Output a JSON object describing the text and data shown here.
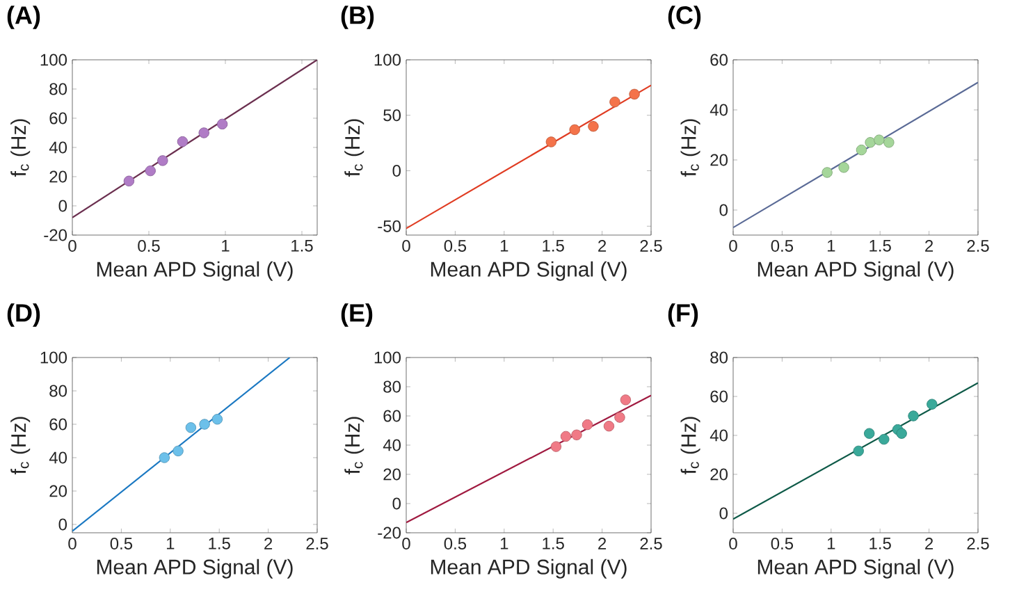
{
  "chart_data": [
    {
      "type": "scatter",
      "title": "(A)",
      "xlabel": "Mean APD Signal (V)",
      "ylabel": "f$_{c}$  (Hz)",
      "xlim": [
        0,
        1.6
      ],
      "xticks": [
        0,
        0.5,
        1,
        1.5
      ],
      "ylim": [
        -20,
        100
      ],
      "yticks": [
        -20,
        0,
        20,
        40,
        60,
        80,
        100
      ],
      "series": [
        {
          "marker": "circle",
          "color": "#b07cc6",
          "x": [
            0.37,
            0.51,
            0.59,
            0.72,
            0.86,
            0.98
          ],
          "values": [
            17,
            24,
            31,
            44,
            50,
            56
          ]
        },
        {
          "type": "line",
          "color": "#6b2f4f",
          "x": [
            0,
            1.6
          ],
          "values": [
            -8,
            100
          ]
        }
      ]
    },
    {
      "type": "scatter",
      "title": "(B)",
      "xlabel": "Mean APD Signal (V)",
      "ylabel": "f$_{c}$  (Hz)",
      "xlim": [
        0,
        2.5
      ],
      "xticks": [
        0,
        0.5,
        1,
        1.5,
        2,
        2.5
      ],
      "ylim": [
        -58,
        100
      ],
      "yticks": [
        -50,
        0,
        50,
        100
      ],
      "series": [
        {
          "marker": "circle",
          "color": "#f4734a",
          "x": [
            1.48,
            1.72,
            1.91,
            2.13,
            2.33
          ],
          "values": [
            26,
            37,
            40,
            62,
            69
          ]
        },
        {
          "type": "line",
          "color": "#e03c22",
          "x": [
            0,
            2.5
          ],
          "values": [
            -52,
            77
          ]
        }
      ]
    },
    {
      "type": "scatter",
      "title": "(C)",
      "xlabel": "Mean APD Signal (V)",
      "ylabel": "f$_{c}$  (Hz)",
      "xlim": [
        0,
        2.5
      ],
      "xticks": [
        0,
        0.5,
        1,
        1.5,
        2,
        2.5
      ],
      "ylim": [
        -10,
        60
      ],
      "yticks": [
        0,
        20,
        40,
        60
      ],
      "series": [
        {
          "marker": "circle",
          "color": "#a5d69a",
          "x": [
            0.96,
            1.13,
            1.31,
            1.4,
            1.49,
            1.59
          ],
          "values": [
            15,
            17,
            24,
            27,
            28,
            27
          ]
        },
        {
          "type": "line",
          "color": "#5a6a96",
          "x": [
            0,
            2.5
          ],
          "values": [
            -7,
            51
          ]
        }
      ]
    },
    {
      "type": "scatter",
      "title": "(D)",
      "xlabel": "Mean APD Signal (V)",
      "ylabel": "f$_{c}$  (Hz)",
      "xlim": [
        0,
        2.5
      ],
      "xticks": [
        0,
        0.5,
        1,
        1.5,
        2,
        2.5
      ],
      "ylim": [
        -5,
        100
      ],
      "yticks": [
        0,
        20,
        40,
        60,
        80,
        100
      ],
      "series": [
        {
          "marker": "circle",
          "color": "#6cc0ea",
          "x": [
            0.94,
            1.08,
            1.21,
            1.35,
            1.48
          ],
          "values": [
            40,
            44,
            58,
            60,
            63
          ]
        },
        {
          "type": "line",
          "color": "#1a78c2",
          "x": [
            0,
            2.22
          ],
          "values": [
            -4,
            100
          ]
        }
      ]
    },
    {
      "type": "scatter",
      "title": "(E)",
      "xlabel": "Mean APD Signal (V)",
      "ylabel": "f$_{c}$  (Hz)",
      "xlim": [
        0,
        2.5
      ],
      "xticks": [
        0,
        0.5,
        1,
        1.5,
        2,
        2.5
      ],
      "ylim": [
        -20,
        100
      ],
      "yticks": [
        -20,
        0,
        20,
        40,
        60,
        80,
        100
      ],
      "series": [
        {
          "marker": "circle",
          "color": "#f07a86",
          "x": [
            1.53,
            1.63,
            1.74,
            1.85,
            2.07,
            2.18,
            2.24
          ],
          "values": [
            39,
            46,
            47,
            54,
            53,
            59,
            71
          ]
        },
        {
          "type": "line",
          "color": "#a01a40",
          "x": [
            0,
            2.5
          ],
          "values": [
            -13,
            74
          ]
        }
      ]
    },
    {
      "type": "scatter",
      "title": "(F)",
      "xlabel": "Mean APD Signal (V)",
      "ylabel": "f$_{c}$  (Hz)",
      "xlim": [
        0,
        2.5
      ],
      "xticks": [
        0,
        0.5,
        1,
        1.5,
        2,
        2.5
      ],
      "ylim": [
        -10,
        80
      ],
      "yticks": [
        0,
        20,
        40,
        60,
        80
      ],
      "series": [
        {
          "marker": "circle",
          "color": "#3aa99a",
          "x": [
            1.28,
            1.39,
            1.54,
            1.68,
            1.72,
            1.84,
            2.03
          ],
          "values": [
            32,
            41,
            38,
            43,
            41,
            50,
            56
          ]
        },
        {
          "type": "line",
          "color": "#0e5a48",
          "x": [
            0,
            2.5
          ],
          "values": [
            -3,
            67
          ]
        }
      ]
    }
  ]
}
